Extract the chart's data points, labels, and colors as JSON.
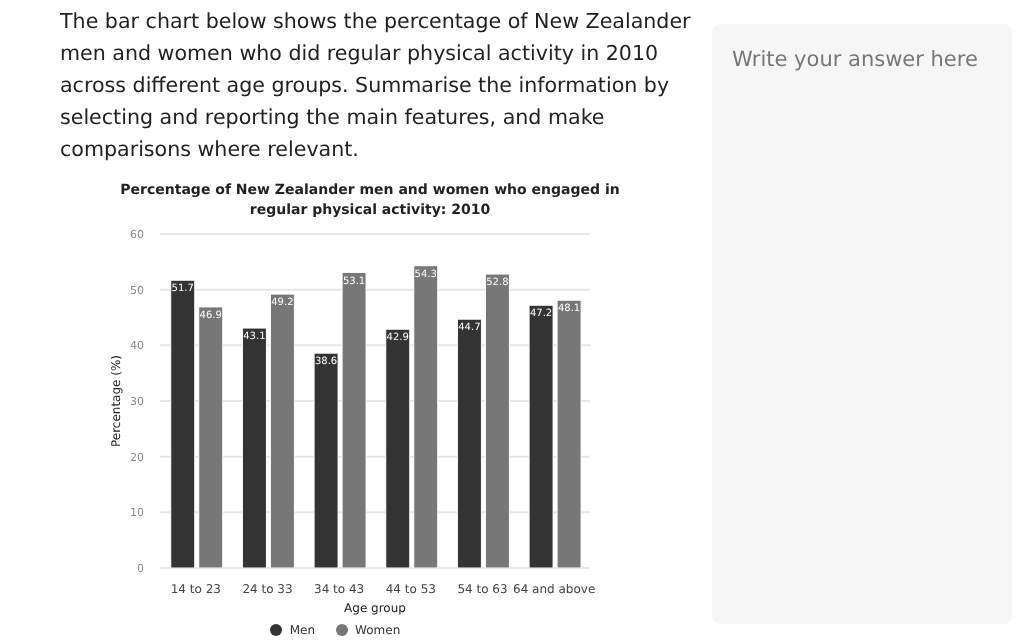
{
  "chart_data": {
    "type": "bar",
    "title": "Percentage of New Zealander men and women who engaged in regular physical activity: 2010",
    "xlabel": "Age group",
    "ylabel": "Percentage (%)",
    "categories": [
      "14 to 23",
      "24 to 33",
      "34 to 43",
      "44 to 53",
      "54 to 63",
      "64 and above"
    ],
    "series": [
      {
        "name": "Men",
        "color": "#333333",
        "values": [
          51.7,
          43.1,
          38.6,
          42.9,
          44.7,
          47.2
        ]
      },
      {
        "name": "Women",
        "color": "#777777",
        "values": [
          46.9,
          49.2,
          53.1,
          54.3,
          52.8,
          48.1
        ]
      }
    ],
    "ylim": [
      0,
      60
    ],
    "yticks": [
      0,
      10,
      20,
      30,
      40,
      50,
      60
    ],
    "grid": "y",
    "legend": "bottom",
    "data_labels": true,
    "annotations": [
      "The bar chart below shows the percentage of New Zealander men and women who did regular physical activity in 2010 across different age groups. Summarise the information by selecting and reporting the main features, and make comparisons where relevant.",
      "Write your answer here"
    ]
  }
}
